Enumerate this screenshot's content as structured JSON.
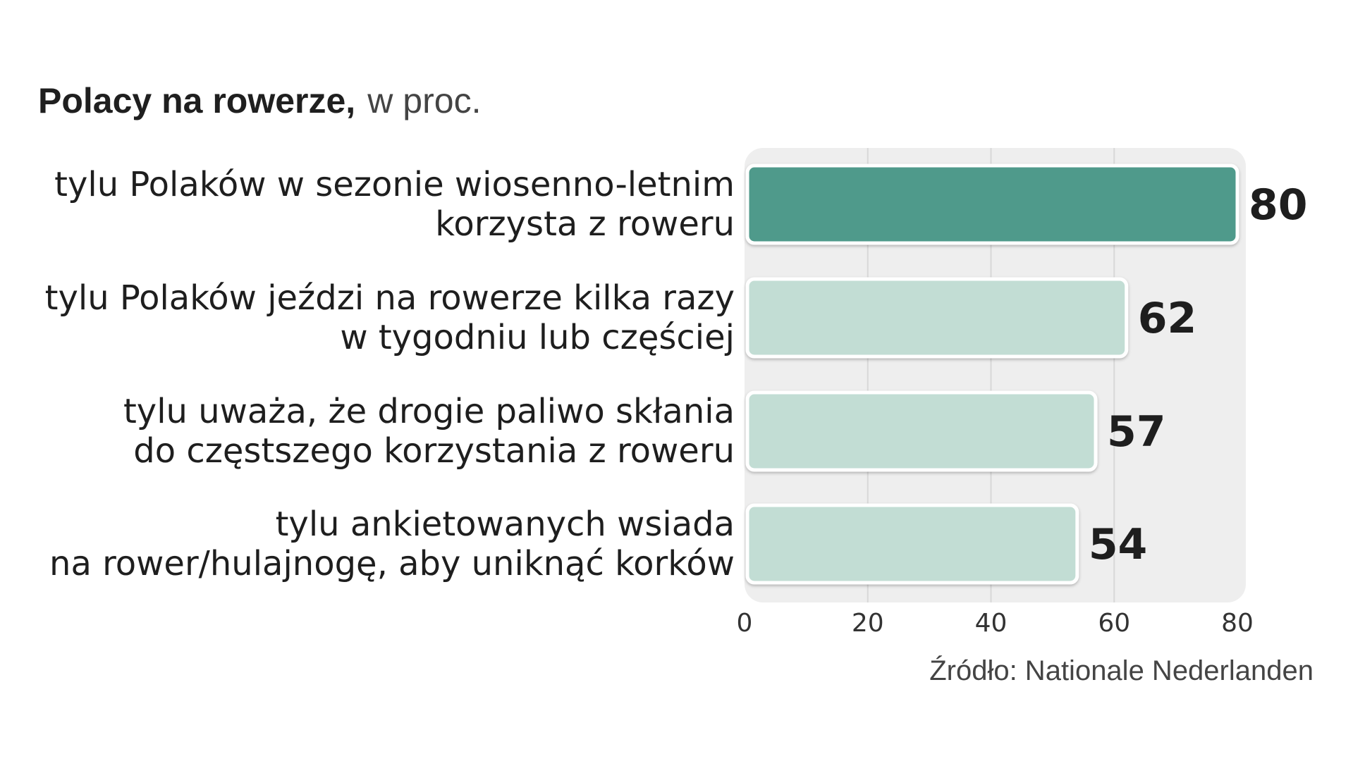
{
  "chart_data": {
    "type": "bar",
    "orientation": "horizontal",
    "title": "Polacy na rowerze,",
    "subtitle": "w proc.",
    "categories": [
      [
        "tylu Polaków w sezonie wiosenno-letnim",
        "korzysta z roweru"
      ],
      [
        "tylu Polaków jeździ na rowerze kilka razy",
        "w tygodniu lub częściej"
      ],
      [
        "tylu uważa, że drogie paliwo skłania",
        "do częstszego korzystania z roweru"
      ],
      [
        "tylu ankietowanych wsiada",
        "na rower/hulajnogę, aby uniknąć korków"
      ]
    ],
    "values": [
      80,
      62,
      57,
      54
    ],
    "xlim": [
      0,
      80
    ],
    "xticks": [
      0,
      20,
      40,
      60,
      80
    ],
    "grid": true,
    "source": "Źródło: Nationale Nederlanden",
    "colors": {
      "highlight": "#4f9a8b",
      "bar": "#c2ddd4",
      "panel": "#eeeeee",
      "grid": "#d8d8d8"
    }
  }
}
